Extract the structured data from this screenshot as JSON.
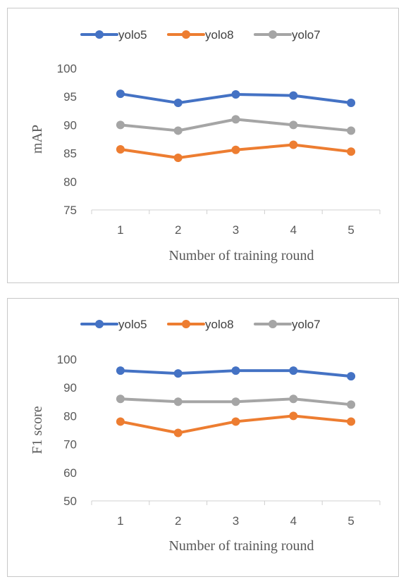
{
  "chart_data": [
    {
      "type": "line",
      "x": [
        1,
        2,
        3,
        4,
        5
      ],
      "categories": [
        "1",
        "2",
        "3",
        "4",
        "5"
      ],
      "series": [
        {
          "name": "yolo5",
          "color": "#4472c4",
          "values": [
            95.5,
            93.9,
            95.4,
            95.2,
            93.9
          ]
        },
        {
          "name": "yolo8",
          "color": "#ed7d31",
          "values": [
            85.7,
            84.2,
            85.6,
            86.5,
            85.3
          ]
        },
        {
          "name": "yolo7",
          "color": "#a5a5a5",
          "values": [
            90.0,
            89.0,
            91.0,
            90.0,
            89.0
          ]
        }
      ],
      "xlabel": "Number of training round",
      "ylabel": "mAP",
      "ylim": [
        75,
        100
      ],
      "yticks": [
        "75",
        "80",
        "85",
        "90",
        "95",
        "100"
      ],
      "grid": false,
      "legend_position": "top"
    },
    {
      "type": "line",
      "x": [
        1,
        2,
        3,
        4,
        5
      ],
      "categories": [
        "1",
        "2",
        "3",
        "4",
        "5"
      ],
      "series": [
        {
          "name": "yolo5",
          "color": "#4472c4",
          "values": [
            96,
            95,
            96,
            96,
            94
          ]
        },
        {
          "name": "yolo8",
          "color": "#ed7d31",
          "values": [
            78,
            74,
            78,
            80,
            78
          ]
        },
        {
          "name": "yolo7",
          "color": "#a5a5a5",
          "values": [
            86,
            85,
            85,
            86,
            84
          ]
        }
      ],
      "xlabel": "Number of training round",
      "ylabel": "F1 score",
      "ylim": [
        50,
        100
      ],
      "yticks": [
        "50",
        "60",
        "70",
        "80",
        "90",
        "100"
      ],
      "grid": false,
      "legend_position": "top"
    }
  ]
}
